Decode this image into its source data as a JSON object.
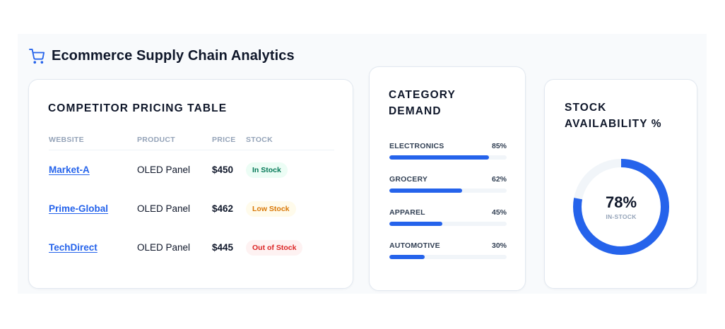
{
  "header": {
    "icon": "shopping-cart-icon",
    "title": "Ecommerce Supply Chain Analytics"
  },
  "pricing": {
    "title": "Competitor Pricing Table",
    "columns": [
      "Website",
      "Product",
      "Price",
      "Stock"
    ],
    "rows": [
      {
        "website": "Market-A",
        "product": "OLED Panel",
        "price": "$450",
        "stock": "In Stock",
        "status": "in"
      },
      {
        "website": "Prime-Global",
        "product": "OLED Panel",
        "price": "$462",
        "stock": "Low Stock",
        "status": "low"
      },
      {
        "website": "TechDirect",
        "product": "OLED Panel",
        "price": "$445",
        "stock": "Out of Stock",
        "status": "out"
      }
    ]
  },
  "demand": {
    "title": "Category Demand",
    "items": [
      {
        "label": "ELECTRONICS",
        "value_text": "85%",
        "percent": 85
      },
      {
        "label": "GROCERY",
        "value_text": "62%",
        "percent": 62
      },
      {
        "label": "APPAREL",
        "value_text": "45%",
        "percent": 45
      },
      {
        "label": "AUTOMOTIVE",
        "value_text": "30%",
        "percent": 30
      }
    ]
  },
  "stock": {
    "title": "Stock Availability %",
    "value_text": "78%",
    "percent": 78,
    "sublabel": "IN-STOCK"
  },
  "colors": {
    "accent": "#2563eb",
    "track": "#f1f5f9",
    "in_stock": "#047857",
    "low_stock": "#d97706",
    "out_of_stock": "#dc2626"
  }
}
